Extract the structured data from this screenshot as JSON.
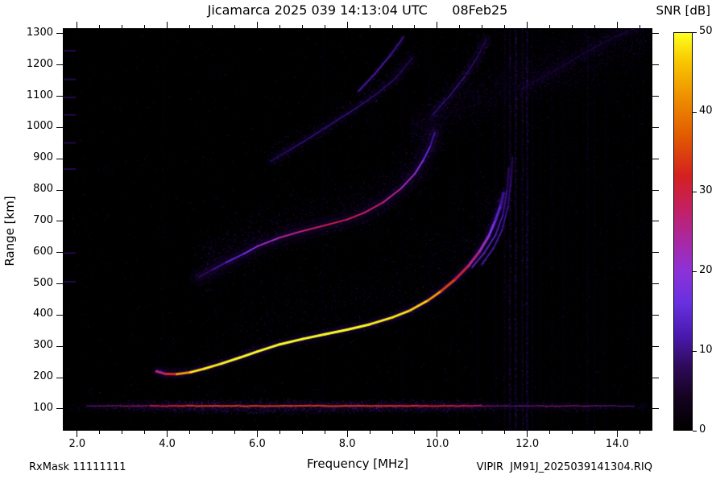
{
  "header": {
    "title": "Jicamarca 2025 039 14:13:04 UTC      08Feb25"
  },
  "colorbar": {
    "label": "SNR [dB]",
    "ticks": [
      0,
      10,
      20,
      30,
      40,
      50
    ],
    "min": 0,
    "max": 50
  },
  "axes": {
    "x_label": "Frequency [MHz]",
    "y_label": "Range [km]",
    "x_ticks": [
      "2.0",
      "4.0",
      "6.0",
      "8.0",
      "10.0",
      "12.0",
      "14.0"
    ],
    "x_tick_values": [
      2,
      4,
      6,
      8,
      10,
      12,
      14
    ],
    "y_ticks": [
      100,
      200,
      300,
      400,
      500,
      600,
      700,
      800,
      900,
      1000,
      1100,
      1200,
      1300
    ],
    "x_minor_step": 0.5
  },
  "footer": {
    "left": "RxMask 11111111",
    "right": "VIPIR  JM91J_2025039141304.RIQ"
  },
  "chart_data": {
    "type": "heatmap",
    "title": "Jicamarca 2025 039 14:13:04 UTC 08Feb25",
    "xlabel": "Frequency [MHz]",
    "ylabel": "Range [km]",
    "zlabel": "SNR [dB]",
    "xlim": [
      1.68,
      14.78
    ],
    "ylim": [
      30,
      1318
    ],
    "zlim": [
      0,
      50
    ],
    "colormap_stops": [
      [
        0.0,
        0,
        0,
        0
      ],
      [
        0.08,
        20,
        2,
        30
      ],
      [
        0.16,
        46,
        10,
        90
      ],
      [
        0.24,
        74,
        26,
        176
      ],
      [
        0.32,
        104,
        48,
        224
      ],
      [
        0.4,
        140,
        50,
        216
      ],
      [
        0.48,
        170,
        40,
        160
      ],
      [
        0.56,
        196,
        32,
        96
      ],
      [
        0.64,
        212,
        32,
        32
      ],
      [
        0.74,
        226,
        90,
        0
      ],
      [
        0.84,
        238,
        144,
        0
      ],
      [
        0.93,
        248,
        200,
        0
      ],
      [
        1.0,
        255,
        255,
        32
      ]
    ],
    "noise": {
      "base_count": 16000,
      "right_dust": 3000
    },
    "spread_region": {
      "f0": 9.4,
      "f1": 14.78,
      "r0": 1000,
      "slope": 62,
      "sigma0": 42,
      "sigma_slope": 17,
      "count": 8000
    },
    "e_region": {
      "f_range": [
        1.75,
        14.78
      ],
      "center": 106,
      "sigma": 14,
      "count": 15000,
      "core_r": 107,
      "core_range": [
        2.2,
        14.3
      ],
      "profile": [
        [
          1.75,
          0.2
        ],
        [
          2.3,
          0.45
        ],
        [
          3.0,
          0.65
        ],
        [
          3.8,
          0.8
        ],
        [
          4.5,
          1.0
        ],
        [
          6.0,
          1.0
        ],
        [
          8.0,
          1.0
        ],
        [
          9.5,
          0.95
        ],
        [
          10.5,
          0.85
        ],
        [
          11.1,
          0.7
        ],
        [
          11.6,
          0.4
        ],
        [
          12.1,
          0.55
        ],
        [
          12.8,
          0.6
        ],
        [
          13.4,
          0.55
        ],
        [
          13.9,
          0.35
        ],
        [
          14.5,
          0.3
        ],
        [
          14.78,
          0.28
        ]
      ]
    },
    "traces": [
      {
        "name": "f-region-o-mode",
        "points": [
          [
            3.75,
            218,
            22
          ],
          [
            3.95,
            210,
            30
          ],
          [
            4.2,
            209,
            36
          ],
          [
            4.5,
            215,
            42
          ],
          [
            4.8,
            226,
            46
          ],
          [
            5.2,
            243,
            48
          ],
          [
            5.6,
            262,
            50
          ],
          [
            6.0,
            282,
            50
          ],
          [
            6.5,
            305,
            50
          ],
          [
            7.0,
            322,
            50
          ],
          [
            7.5,
            337,
            50
          ],
          [
            8.0,
            352,
            50
          ],
          [
            8.5,
            369,
            49
          ],
          [
            9.0,
            391,
            47
          ],
          [
            9.4,
            414,
            45
          ],
          [
            9.8,
            446,
            41
          ],
          [
            10.1,
            477,
            37
          ],
          [
            10.4,
            513,
            33
          ],
          [
            10.7,
            557,
            28
          ],
          [
            10.95,
            604,
            24
          ],
          [
            11.15,
            652,
            20
          ],
          [
            11.3,
            703,
            16
          ],
          [
            11.42,
            752,
            12
          ],
          [
            11.48,
            790,
            9
          ]
        ],
        "halo": [
          [
            13,
            0.1,
            0.21
          ],
          [
            6,
            0.2,
            0.23
          ]
        ],
        "fuzz": [
          {
            "count": 2800,
            "spread": 4,
            "vspread": 1.8,
            "voffset": -2
          },
          {
            "count": 4200,
            "spread": 9,
            "vspread": 5,
            "voffset": -30,
            "f_range": [
              5.5,
              11.3
            ]
          }
        ],
        "core": {
          "width": 3,
          "hot": true
        }
      },
      {
        "name": "second-hop-echo",
        "points": [
          [
            4.7,
            522,
            7
          ],
          [
            5.0,
            545,
            9
          ],
          [
            5.3,
            568,
            12
          ],
          [
            5.7,
            596,
            16
          ],
          [
            6.0,
            620,
            20
          ],
          [
            6.5,
            648,
            24
          ],
          [
            7.0,
            669,
            27
          ],
          [
            7.5,
            687,
            29
          ],
          [
            8.0,
            706,
            30
          ],
          [
            8.4,
            729,
            29
          ],
          [
            8.8,
            761,
            27
          ],
          [
            9.2,
            806,
            24
          ],
          [
            9.5,
            852,
            21
          ],
          [
            9.7,
            898,
            17
          ],
          [
            9.85,
            942,
            13
          ],
          [
            9.95,
            985,
            9
          ]
        ],
        "halo": [
          [
            24,
            0.08,
            0.2
          ],
          [
            11,
            0.13,
            0.22
          ]
        ],
        "fuzz": [
          {
            "count": 5200,
            "spread": 13,
            "vspread": 2.4,
            "voffset": -10
          }
        ],
        "core": {
          "width": 2
        }
      },
      {
        "name": "third-hop-echo",
        "points": [
          [
            6.3,
            893,
            9
          ],
          [
            6.7,
            928,
            11
          ],
          [
            7.2,
            972,
            12
          ],
          [
            7.7,
            1018,
            12
          ],
          [
            8.2,
            1064,
            12
          ],
          [
            8.7,
            1114,
            11
          ],
          [
            9.1,
            1163,
            10
          ],
          [
            9.45,
            1225,
            8
          ]
        ],
        "halo": [
          [
            14,
            0.06,
            0.18
          ],
          [
            7,
            0.09,
            0.2
          ]
        ],
        "fuzz": [
          {
            "count": 2000,
            "spread": 8,
            "vspread": 1.6,
            "voffset": -4
          }
        ],
        "core": {
          "width": 1.2,
          "alpha": 0.8
        }
      },
      {
        "name": "oblique-streak",
        "points": [
          [
            8.25,
            1118,
            13
          ],
          [
            8.6,
            1172,
            14
          ],
          [
            8.95,
            1232,
            13
          ],
          [
            9.25,
            1292,
            11
          ]
        ],
        "halo": [
          [
            5,
            0.14,
            0.21
          ]
        ],
        "fuzz": [
          {
            "count": 500,
            "spread": 3,
            "vspread": 1.5
          }
        ],
        "core": {
          "width": 1.4,
          "alpha": 0.9
        }
      },
      {
        "name": "topside-streak-1",
        "points": [
          [
            9.9,
            1042,
            10
          ],
          [
            10.25,
            1098,
            13
          ],
          [
            10.6,
            1162,
            12
          ],
          [
            10.9,
            1228,
            10
          ],
          [
            11.1,
            1285,
            8
          ]
        ],
        "halo": [
          [
            12,
            0.1,
            0.2
          ]
        ],
        "fuzz": [
          {
            "count": 1200,
            "spread": 8,
            "vspread": 2
          }
        ],
        "core": {
          "width": 1.2,
          "alpha": 0.75
        }
      },
      {
        "name": "topside-streak-2",
        "points": [
          [
            11.9,
            1128,
            8
          ],
          [
            12.6,
            1182,
            9
          ],
          [
            13.3,
            1242,
            10
          ],
          [
            14.0,
            1296,
            10
          ],
          [
            14.6,
            1330,
            9
          ]
        ],
        "halo": [
          [
            14,
            0.07,
            0.19
          ]
        ],
        "fuzz": [
          {
            "count": 1500,
            "spread": 10,
            "vspread": 2
          }
        ],
        "core": {
          "width": 1,
          "alpha": 0.5
        }
      },
      {
        "name": "x-mode-cusp-a",
        "points": [
          [
            10.78,
            552,
            18
          ],
          [
            11.05,
            598,
            16
          ],
          [
            11.3,
            655,
            15
          ],
          [
            11.47,
            722,
            13
          ],
          [
            11.56,
            800,
            10
          ],
          [
            11.6,
            872,
            8
          ]
        ],
        "halo": [
          [
            4,
            0.18,
            0.22
          ]
        ],
        "fuzz": [
          {
            "count": 350,
            "spread": 2.5,
            "vspread": 1.5
          }
        ],
        "core": {
          "width": 1.3,
          "alpha": 0.95
        }
      },
      {
        "name": "x-mode-cusp-b",
        "points": [
          [
            11.0,
            562,
            15
          ],
          [
            11.25,
            612,
            14
          ],
          [
            11.45,
            672,
            13
          ],
          [
            11.58,
            748,
            11
          ],
          [
            11.65,
            835,
            9
          ],
          [
            11.68,
            905,
            7
          ]
        ],
        "halo": [
          [
            4,
            0.16,
            0.22
          ]
        ],
        "fuzz": [
          {
            "count": 350,
            "spread": 2.5,
            "vspread": 1.5
          }
        ],
        "core": {
          "width": 1.3,
          "alpha": 0.9
        }
      }
    ],
    "rfi_stripes": [
      [
        3.9,
        0.05
      ],
      [
        5.05,
        0.04
      ],
      [
        6.3,
        0.04
      ],
      [
        7.45,
        0.05
      ],
      [
        8.6,
        0.04
      ],
      [
        9.2,
        0.06
      ],
      [
        9.85,
        0.05
      ],
      [
        10.45,
        0.06
      ],
      [
        10.9,
        0.08
      ],
      [
        11.3,
        0.09
      ],
      [
        11.5,
        0.16
      ],
      [
        11.62,
        0.22
      ],
      [
        11.75,
        0.28
      ],
      [
        11.9,
        0.2
      ],
      [
        12.0,
        0.26
      ],
      [
        12.12,
        0.12
      ],
      [
        12.3,
        0.07
      ],
      [
        12.55,
        0.08
      ],
      [
        12.8,
        0.06
      ],
      [
        13.1,
        0.05
      ],
      [
        13.35,
        0.13
      ],
      [
        13.5,
        0.09
      ],
      [
        13.75,
        0.05
      ],
      [
        14.05,
        0.05
      ],
      [
        14.35,
        0.06
      ],
      [
        14.6,
        0.05
      ]
    ],
    "edge_marks": [
      1248,
      1156,
      1098,
      1042,
      952,
      868,
      598,
      506
    ]
  }
}
